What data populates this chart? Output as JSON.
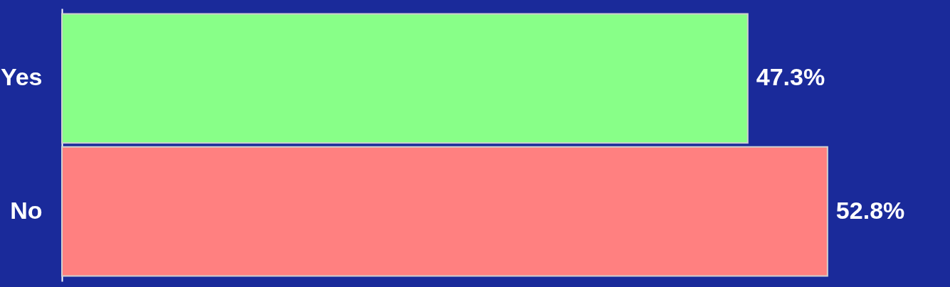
{
  "chart_data": {
    "type": "bar",
    "orientation": "horizontal",
    "categories": [
      "Yes",
      "No"
    ],
    "values": [
      47.3,
      52.8
    ],
    "colors": [
      "#88ff88",
      "#ff8080"
    ],
    "value_labels": [
      "47.3%",
      "52.8%"
    ],
    "tick_labels": "y"
  }
}
